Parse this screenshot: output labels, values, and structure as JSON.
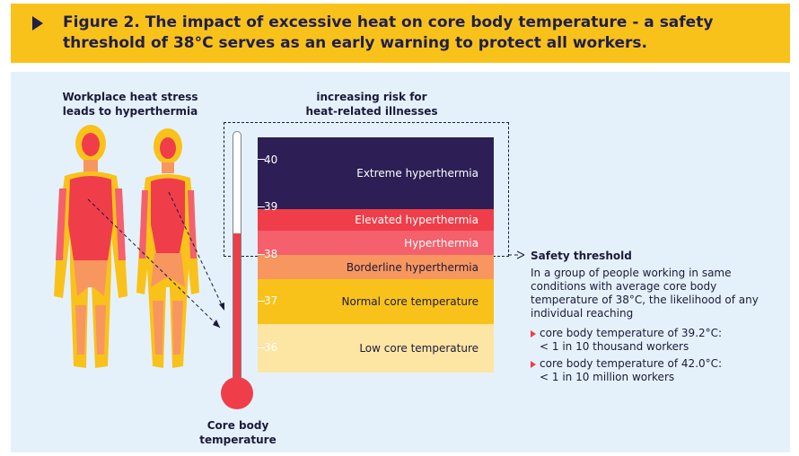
{
  "header": {
    "title": "Figure 2. The impact of excessive heat on core body temperature - a safety threshold of 38°C serves as an early warning to protect all workers."
  },
  "left_label": [
    "Workplace heat stress",
    "leads to hyperthermia"
  ],
  "risk_label": [
    "increasing risk for",
    "heat-related illnesses"
  ],
  "thermometer_label": [
    "Core body",
    "temperature"
  ],
  "scale_ticks": [
    "40",
    "39",
    "38",
    "37",
    "36"
  ],
  "zones": {
    "extreme": "Extreme hyperthermia",
    "elevated": "Elevated hyperthermia",
    "hyperthermia": "Hyperthermia",
    "borderline": "Borderline hyperthermia",
    "normal": "Normal core temperature",
    "low": "Low core temperature"
  },
  "safety": {
    "title": "Safety threshold",
    "description": "In a group of people working in same conditions with average core body temperature of 38°C, the likelihood of any individual reaching",
    "bullets": [
      [
        "core body temperature of 39.2°C:",
        "< 1 in 10 thousand workers"
      ],
      [
        "core body temperature of 42.0°C:",
        "< 1 in 10 million workers"
      ]
    ]
  },
  "colors": {
    "header_bg": "#f9c21a",
    "panel_bg": "#e5f1fa",
    "extreme": "#2d1f55",
    "elevated": "#ef3e4a",
    "hyperthermia": "#f4606c",
    "borderline": "#f8965f",
    "normal": "#f9c21a",
    "low": "#fde5a4",
    "mercury": "#ef3e4a"
  },
  "icons": [
    "play-triangle-icon",
    "human-body-male-icon",
    "human-body-female-icon",
    "thermometer-icon",
    "dashed-arrow-icon",
    "bullet-triangle-icon"
  ]
}
